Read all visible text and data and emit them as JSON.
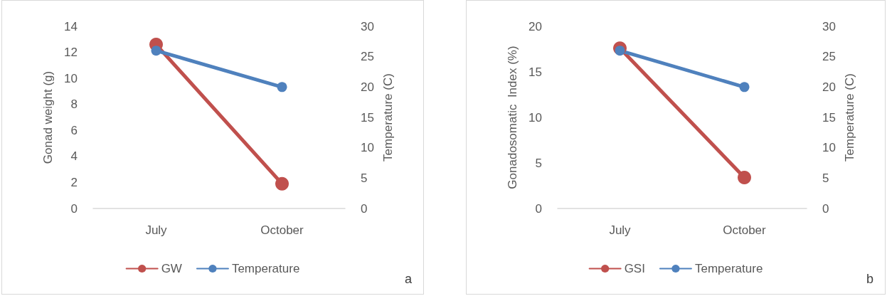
{
  "chart_data": [
    {
      "type": "line",
      "categories": [
        "July",
        "October"
      ],
      "ylabel": "Gonad weight (g)",
      "y2label": "Temperature (C)",
      "series": [
        {
          "name": "GW",
          "color": "#c0504d",
          "values": [
            12.6,
            1.9
          ]
        },
        {
          "name": "Temperature",
          "color": "#4f81bd",
          "values": [
            26,
            20
          ],
          "axis": "y2"
        }
      ],
      "ylim": [
        0,
        14
      ],
      "yticks": [
        0,
        2,
        4,
        6,
        8,
        10,
        12,
        14
      ],
      "y2lim": [
        0,
        30
      ],
      "y2ticks": [
        0,
        5,
        10,
        15,
        20,
        25,
        30
      ],
      "grid": false,
      "legend": "bottom",
      "marker": "circle",
      "line_style": "solid",
      "annotations": [
        "a"
      ]
    },
    {
      "type": "line",
      "categories": [
        "July",
        "October"
      ],
      "ylabel": "Gonadosomatic  Index (%)",
      "y2label": "Temperature (C)",
      "series": [
        {
          "name": "GSI",
          "color": "#c0504d",
          "values": [
            17.6,
            3.4
          ]
        },
        {
          "name": "Temperature",
          "color": "#4f81bd",
          "values": [
            26,
            20
          ],
          "axis": "y2"
        }
      ],
      "ylim": [
        0,
        20
      ],
      "yticks": [
        0,
        5,
        10,
        15,
        20
      ],
      "y2lim": [
        0,
        30
      ],
      "y2ticks": [
        0,
        5,
        10,
        15,
        20,
        25,
        30
      ],
      "grid": false,
      "legend": "bottom",
      "marker": "circle",
      "line_style": "solid",
      "annotations": [
        "b"
      ]
    }
  ]
}
